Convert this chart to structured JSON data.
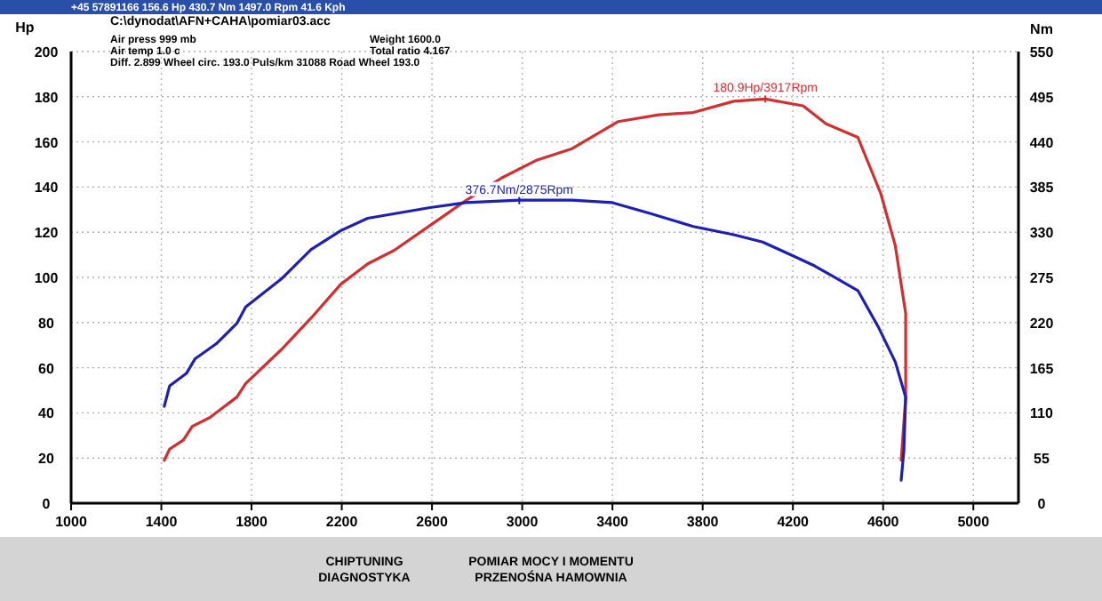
{
  "chart_data": {
    "type": "line",
    "ylabel": "Hp",
    "y2label": "Nm",
    "xlim": [
      1000,
      5200
    ],
    "xticks": [
      1000,
      1400,
      1800,
      2200,
      2600,
      3000,
      3400,
      3800,
      4200,
      4600,
      5000
    ],
    "ylim": [
      0,
      200
    ],
    "yticks": [
      0,
      20,
      40,
      60,
      80,
      100,
      120,
      140,
      160,
      180,
      200
    ],
    "y2lim": [
      0,
      550
    ],
    "y2ticks": [
      0,
      55,
      110,
      165,
      220,
      275,
      330,
      385,
      440,
      495,
      550
    ],
    "grid": true,
    "marker": "none",
    "line_style": "solid",
    "series": [
      {
        "color": "#d03030",
        "x": [
          1413,
          1437,
          1498,
          1537,
          1616,
          1735,
          1774,
          1932,
          2064,
          2196,
          2315,
          2433,
          2591,
          2750,
          2908,
          3066,
          3221,
          3426,
          3605,
          3758,
          3938,
          4078,
          4245,
          4347,
          4488,
          4590,
          4654,
          4700,
          4700,
          4680
        ],
        "values": [
          19,
          24,
          28,
          34,
          38,
          47,
          53,
          68,
          82,
          97,
          106,
          112,
          123,
          134,
          144,
          152,
          157,
          169,
          172,
          173,
          178,
          179,
          176,
          168,
          162,
          137,
          114,
          84,
          47,
          19
        ]
      },
      {
        "color": "#2020b0",
        "axis": "y2",
        "x": [
          1413,
          1437,
          1511,
          1550,
          1643,
          1735,
          1774,
          1932,
          2064,
          2196,
          2315,
          2591,
          2750,
          2987,
          3221,
          3400,
          3566,
          3758,
          3938,
          4066,
          4194,
          4296,
          4373,
          4488,
          4578,
          4654,
          4700,
          4692,
          4680
        ],
        "values": [
          118,
          143,
          158,
          176,
          194,
          219,
          239,
          273,
          309,
          332,
          347,
          360,
          366,
          369,
          369,
          366,
          353,
          337,
          327,
          318,
          302,
          289,
          277,
          259,
          215,
          172,
          129,
          64,
          28
        ]
      }
    ],
    "annotations": [
      "+45 57891166 156.6 Hp 430.7 Nm 1497.0 Rpm 41.6 Kph",
      "C:\\dynodat\\AFN+CAHA\\pomiar03.acc",
      "Air press  999 mb",
      "Air temp  1.0 c",
      "Diff.  2.899  Wheel circ. 193.0  Puls/km  31088  Road Wheel 193.0",
      "Weight  1600.0",
      "Total ratio 4.167",
      "CHIPTUNING",
      "DIAGNOSTYKA",
      "POMIAR MOCY I MOMENTU",
      "PRZENOŚNA HAMOWNIA",
      {
        "text": "180.9Hp/3917Rpm",
        "x": 4078,
        "y": 179
      },
      {
        "text": "376.7Nm/2875Rpm",
        "x": 2987,
        "y": 134
      }
    ]
  }
}
